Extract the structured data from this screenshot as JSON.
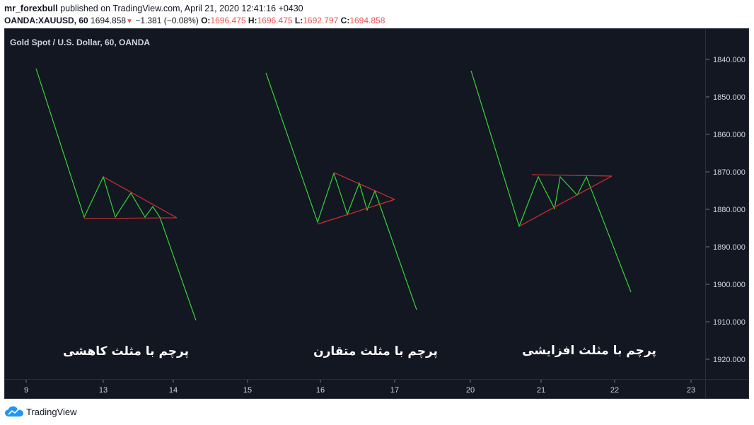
{
  "header": {
    "author": "mr_forexbull",
    "published_text": "published on TradingView.com, April 21, 2020 12:41:16 +0430",
    "symbol": "OANDA:XAUUSD, 60",
    "last_price": "1694.858",
    "change": "−1.381 (−0.08%)",
    "open_label": "O:",
    "open": "1696.475",
    "high_label": "H:",
    "high": "1696.475",
    "low_label": "L:",
    "low": "1692.797",
    "close_label": "C:",
    "close": "1694.858"
  },
  "chart": {
    "title": "Gold Spot / U.S. Dollar, 60, OANDA",
    "background": "#131722",
    "price_line_color": "#32d632",
    "trendline_color": "#d32f2f",
    "y_ticks": [
      "1840.000",
      "1850.000",
      "1860.000",
      "1870.000",
      "1880.000",
      "1890.000",
      "1900.000",
      "1910.000",
      "1920.000"
    ],
    "x_ticks": [
      "9",
      "13",
      "14",
      "15",
      "16",
      "17",
      "20",
      "21",
      "22",
      "23"
    ],
    "annotations": [
      "پرچم با مثلث کاهشی",
      "پرچم با مثلث متقارن",
      "پرچم با مثلث افزایشی"
    ]
  },
  "footer": {
    "brand": "TradingView",
    "logo_icon": "tradingview-cloud-icon"
  }
}
